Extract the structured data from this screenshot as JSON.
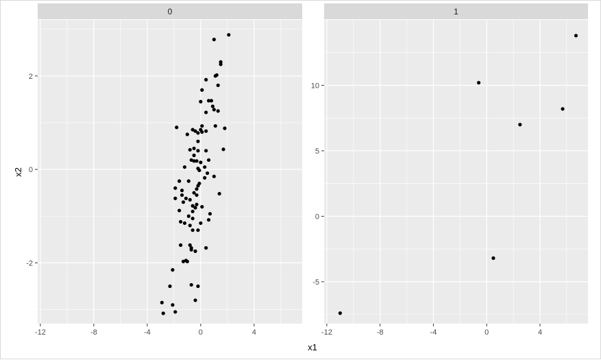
{
  "chart_data": {
    "type": "scatter",
    "facet_layout": "columns",
    "xlabel": "x1",
    "ylabel": "x2",
    "grid": true,
    "point_color": "#000000",
    "panel_background": "#ebebeb",
    "strip_background": "#d9d9d9",
    "grid_color": "#ffffff",
    "axis_text_color": "#4d4d4d",
    "xlim": [
      -12.2,
      7.6
    ],
    "xticks": [
      -12,
      -8,
      -4,
      0,
      4
    ],
    "panels": [
      {
        "strip_label": "0",
        "ylim": [
          -3.3,
          3.2
        ],
        "yticks": [
          -2,
          0,
          2
        ],
        "points": [
          [
            2.1,
            2.88
          ],
          [
            1.0,
            2.78
          ],
          [
            1.5,
            2.3
          ],
          [
            1.5,
            2.25
          ],
          [
            1.2,
            2.02
          ],
          [
            1.1,
            2.0
          ],
          [
            0.4,
            1.92
          ],
          [
            1.3,
            1.8
          ],
          [
            0.1,
            1.7
          ],
          [
            0.6,
            1.47
          ],
          [
            0.8,
            1.47
          ],
          [
            0.0,
            1.45
          ],
          [
            0.9,
            1.35
          ],
          [
            1.0,
            1.28
          ],
          [
            1.3,
            1.25
          ],
          [
            0.4,
            1.22
          ],
          [
            1.1,
            0.93
          ],
          [
            0.1,
            0.93
          ],
          [
            -1.8,
            0.9
          ],
          [
            1.8,
            0.88
          ],
          [
            0.0,
            0.85
          ],
          [
            -0.6,
            0.85
          ],
          [
            -0.4,
            0.82
          ],
          [
            0.4,
            0.82
          ],
          [
            0.1,
            0.8
          ],
          [
            -0.2,
            0.78
          ],
          [
            -1.0,
            0.75
          ],
          [
            -0.2,
            0.6
          ],
          [
            -0.5,
            0.45
          ],
          [
            -0.8,
            0.42
          ],
          [
            -0.2,
            0.4
          ],
          [
            0.4,
            0.4
          ],
          [
            1.7,
            0.43
          ],
          [
            -0.5,
            0.3
          ],
          [
            -0.7,
            0.2
          ],
          [
            0.6,
            0.2
          ],
          [
            -0.5,
            0.18
          ],
          [
            -0.3,
            0.18
          ],
          [
            0.0,
            0.15
          ],
          [
            -1.2,
            0.05
          ],
          [
            0.3,
            0.05
          ],
          [
            -0.2,
            0.02
          ],
          [
            -0.1,
            -0.02
          ],
          [
            0.5,
            -0.08
          ],
          [
            1.0,
            -0.15
          ],
          [
            0.3,
            -0.18
          ],
          [
            -1.6,
            -0.25
          ],
          [
            -0.9,
            -0.25
          ],
          [
            -0.1,
            -0.3
          ],
          [
            -0.2,
            -0.35
          ],
          [
            -1.9,
            -0.4
          ],
          [
            -0.3,
            -0.42
          ],
          [
            -1.4,
            -0.45
          ],
          [
            -0.5,
            -0.5
          ],
          [
            1.4,
            -0.52
          ],
          [
            -1.4,
            -0.55
          ],
          [
            -0.3,
            -0.55
          ],
          [
            -1.9,
            -0.62
          ],
          [
            -1.1,
            -0.62
          ],
          [
            -0.8,
            -0.65
          ],
          [
            -1.3,
            -0.7
          ],
          [
            -0.3,
            -0.75
          ],
          [
            -0.6,
            -0.78
          ],
          [
            0.1,
            -0.8
          ],
          [
            -0.4,
            -0.82
          ],
          [
            -1.6,
            -0.88
          ],
          [
            -0.6,
            -0.9
          ],
          [
            0.7,
            -0.95
          ],
          [
            -0.9,
            -1.0
          ],
          [
            -0.6,
            -1.05
          ],
          [
            0.6,
            -1.08
          ],
          [
            -1.5,
            -1.12
          ],
          [
            -1.2,
            -1.15
          ],
          [
            0.0,
            -1.15
          ],
          [
            -0.8,
            -1.2
          ],
          [
            -0.6,
            -1.3
          ],
          [
            -0.2,
            -1.3
          ],
          [
            -1.5,
            -1.62
          ],
          [
            -0.8,
            -1.62
          ],
          [
            -0.7,
            -1.68
          ],
          [
            0.4,
            -1.68
          ],
          [
            -0.7,
            -1.72
          ],
          [
            -0.4,
            -1.75
          ],
          [
            -1.1,
            -1.95
          ],
          [
            -1.3,
            -1.97
          ],
          [
            -1.0,
            -1.97
          ],
          [
            -2.1,
            -2.15
          ],
          [
            -0.7,
            -2.47
          ],
          [
            -0.2,
            -2.5
          ],
          [
            -2.3,
            -2.5
          ],
          [
            -0.4,
            -2.8
          ],
          [
            -2.9,
            -2.85
          ],
          [
            -2.1,
            -2.9
          ],
          [
            -1.9,
            -3.05
          ],
          [
            -2.8,
            -3.08
          ]
        ]
      },
      {
        "strip_label": "1",
        "ylim": [
          -8.2,
          15.0
        ],
        "yticks": [
          -5,
          0,
          5,
          10
        ],
        "points": [
          [
            6.7,
            13.8
          ],
          [
            -0.6,
            10.2
          ],
          [
            5.7,
            8.2
          ],
          [
            2.5,
            7.0
          ],
          [
            0.5,
            -3.2
          ],
          [
            -11.0,
            -7.4
          ]
        ]
      }
    ]
  }
}
